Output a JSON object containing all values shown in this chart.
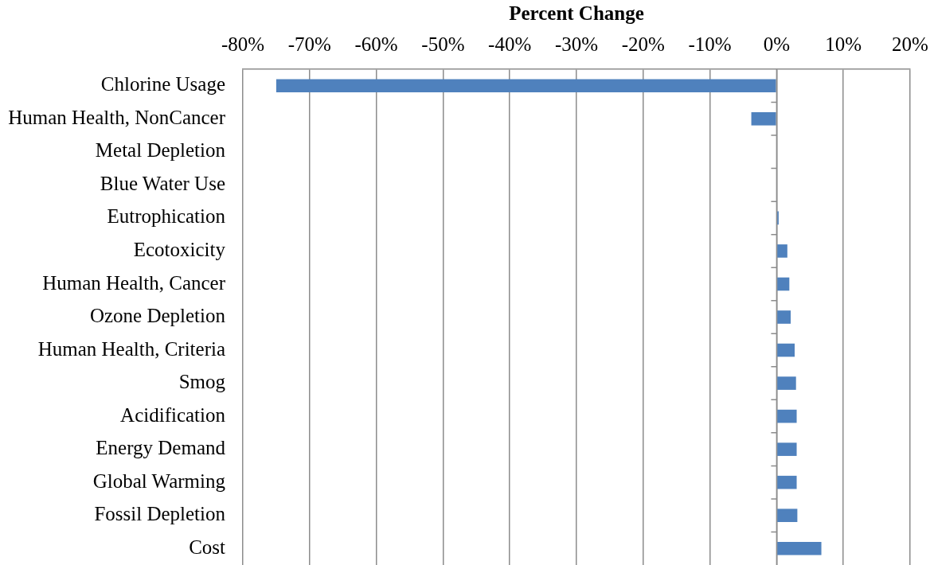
{
  "chart_data": {
    "type": "bar",
    "orientation": "horizontal",
    "xlabel": "Percent Change",
    "categories": [
      "Chlorine Usage",
      "Human Health, NonCancer",
      "Metal Depletion",
      "Blue Water Use",
      "Eutrophication",
      "Ecotoxicity",
      "Human Health, Cancer",
      "Ozone Depletion",
      "Human Health, Criteria",
      "Smog",
      "Acidification",
      "Energy Demand",
      "Global Warming",
      "Fossil Depletion",
      "Cost"
    ],
    "values": [
      -75,
      -3.8,
      0,
      0,
      0.3,
      1.6,
      1.9,
      2.1,
      2.7,
      2.9,
      3.0,
      3.0,
      3.0,
      3.1,
      6.7
    ],
    "color": "#4f81bd",
    "xlim": [
      -80,
      20
    ],
    "xticks": [
      {
        "value": -80,
        "label": "-80%"
      },
      {
        "value": -70,
        "label": "-70%"
      },
      {
        "value": -60,
        "label": "-60%"
      },
      {
        "value": -50,
        "label": "-50%"
      },
      {
        "value": -40,
        "label": "-40%"
      },
      {
        "value": -30,
        "label": "-30%"
      },
      {
        "value": -20,
        "label": "-20%"
      },
      {
        "value": -10,
        "label": "-10%"
      },
      {
        "value": 0,
        "label": "0%"
      },
      {
        "value": 10,
        "label": "10%"
      },
      {
        "value": 20,
        "label": "20%"
      }
    ],
    "grid": "x"
  }
}
